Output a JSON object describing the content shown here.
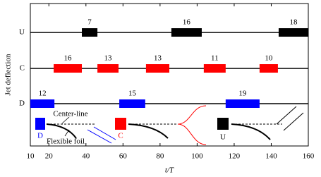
{
  "chart_data": {
    "type": "timeline",
    "xlabel": "t/T",
    "ylabel": "Jet deflection",
    "xlim": [
      10,
      160
    ],
    "xticks": [
      10,
      20,
      40,
      60,
      80,
      100,
      120,
      140,
      160
    ],
    "series": [
      {
        "name": "U",
        "color": "#000000",
        "starts": [
          37.8,
          86.1,
          144
        ],
        "ends": [
          46.2,
          102.5,
          160
        ],
        "values": [
          7,
          16,
          18
        ]
      },
      {
        "name": "C",
        "color": "#ff0000",
        "starts": [
          22.6,
          46.2,
          72.4,
          103.6,
          133.7
        ],
        "ends": [
          37.8,
          57.6,
          85,
          115.4,
          143.6
        ],
        "values": [
          16,
          13,
          13,
          11,
          10
        ]
      },
      {
        "name": "D",
        "color": "#0000ff",
        "starts": [
          10,
          58,
          115.4
        ],
        "ends": [
          23,
          72,
          133.7
        ],
        "values": [
          12,
          15,
          19
        ]
      }
    ],
    "annotations": {
      "center_line": "Center-line",
      "flexible_foil": "Flexible foil"
    }
  }
}
